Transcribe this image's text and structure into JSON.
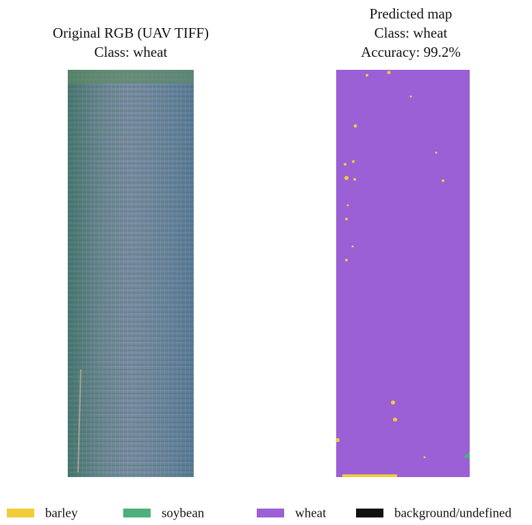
{
  "panels": [
    {
      "title_lines": [
        "Original RGB (UAV TIFF)",
        "Class: wheat"
      ]
    },
    {
      "title_lines": [
        "Predicted map",
        "Class: wheat",
        "Accuracy: 99.2%"
      ]
    }
  ],
  "legend": [
    {
      "label": "barley",
      "color": "#f2cc3a"
    },
    {
      "label": "soybean",
      "color": "#4daf7c"
    },
    {
      "label": "wheat",
      "color": "#9b5fd6"
    },
    {
      "label": "background/undefined",
      "color": "#111111"
    }
  ]
}
